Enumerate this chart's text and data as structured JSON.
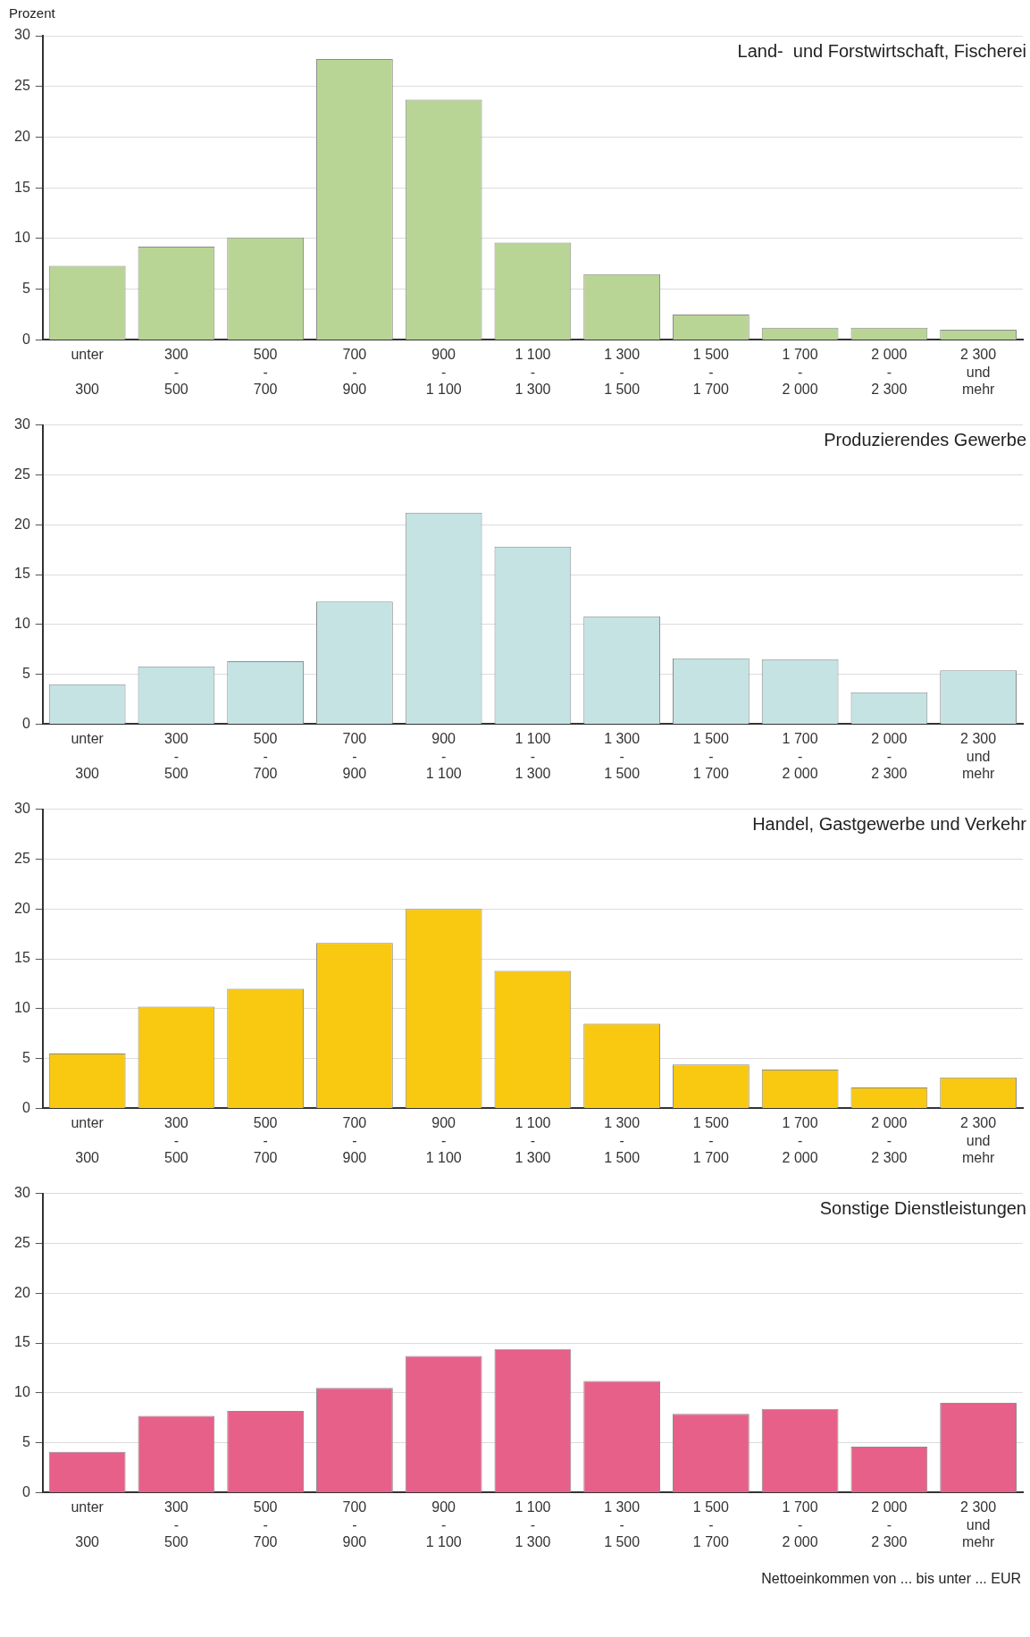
{
  "chart_data": [
    {
      "type": "bar",
      "title": "Land-  und Forstwirtschaft, Fischerei",
      "ylabel": "Prozent",
      "categories": [
        "unter\n\n300",
        "300\n-\n500",
        "500\n-\n700",
        "700\n-\n900",
        "900\n-\n1 100",
        "1 100\n-\n1 300",
        "1 300\n-\n1 500",
        "1 500\n-\n1 700",
        "1 700\n-\n2 000",
        "2 000\n-\n2 300",
        "2 300\nund\nmehr"
      ],
      "values": [
        7.3,
        9.2,
        10.1,
        27.7,
        23.7,
        9.6,
        6.5,
        2.5,
        1.2,
        1.2,
        1.0
      ],
      "color": "#b9d595",
      "ylim": [
        0,
        30
      ],
      "yticks": [
        0,
        5,
        10,
        15,
        20,
        25,
        30
      ],
      "grid": "y"
    },
    {
      "type": "bar",
      "title": "Produzierendes Gewerbe",
      "categories": [
        "unter\n\n300",
        "300\n-\n500",
        "500\n-\n700",
        "700\n-\n900",
        "900\n-\n1 100",
        "1 100\n-\n1 300",
        "1 300\n-\n1 500",
        "1 500\n-\n1 700",
        "1 700\n-\n2 000",
        "2 000\n-\n2 300",
        "2 300\nund\nmehr"
      ],
      "values": [
        4.0,
        5.8,
        6.3,
        12.3,
        21.2,
        17.8,
        10.8,
        6.6,
        6.5,
        3.2,
        5.4
      ],
      "color": "#c5e3e3",
      "ylim": [
        0,
        30
      ],
      "yticks": [
        0,
        5,
        10,
        15,
        20,
        25,
        30
      ],
      "grid": "y"
    },
    {
      "type": "bar",
      "title": "Handel, Gastgewerbe und Verkehr",
      "categories": [
        "unter\n\n300",
        "300\n-\n500",
        "500\n-\n700",
        "700\n-\n900",
        "900\n-\n1 100",
        "1 100\n-\n1 300",
        "1 300\n-\n1 500",
        "1 500\n-\n1 700",
        "1 700\n-\n2 000",
        "2 000\n-\n2 300",
        "2 300\nund\nmehr"
      ],
      "values": [
        5.5,
        10.2,
        12.0,
        16.6,
        20.0,
        13.8,
        8.5,
        4.4,
        3.9,
        2.1,
        3.1
      ],
      "color": "#f9c811",
      "ylim": [
        0,
        30
      ],
      "yticks": [
        0,
        5,
        10,
        15,
        20,
        25,
        30
      ],
      "grid": "y"
    },
    {
      "type": "bar",
      "title": "Sonstige Dienstleistungen",
      "xlabel": "Nettoeinkommen von ... bis unter ... EUR",
      "categories": [
        "unter\n\n300",
        "300\n-\n500",
        "500\n-\n700",
        "700\n-\n900",
        "900\n-\n1 100",
        "1 100\n-\n1 300",
        "1 300\n-\n1 500",
        "1 500\n-\n1 700",
        "1 700\n-\n2 000",
        "2 000\n-\n2 300",
        "2 300\nund\nmehr"
      ],
      "values": [
        4.1,
        7.7,
        8.2,
        10.5,
        13.7,
        14.4,
        11.2,
        7.9,
        8.4,
        4.6,
        9.0
      ],
      "color": "#e6608a",
      "ylim": [
        0,
        30
      ],
      "yticks": [
        0,
        5,
        10,
        15,
        20,
        25,
        30
      ],
      "grid": "y"
    }
  ]
}
